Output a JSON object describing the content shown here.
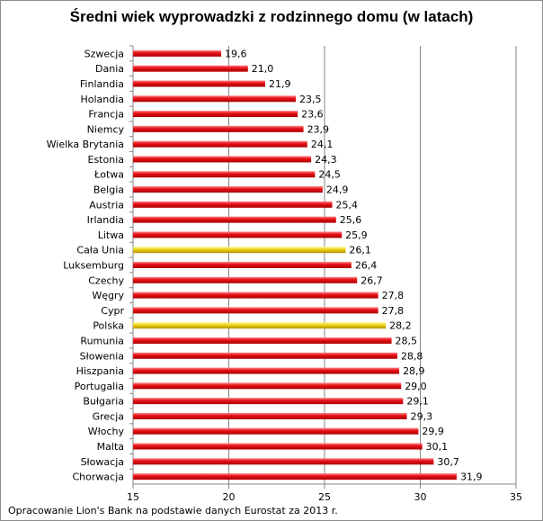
{
  "chart_data": {
    "type": "bar",
    "orientation": "horizontal",
    "title": "Średni wiek wyprowadzki z rodzinnego domu (w latach)",
    "categories": [
      "Szwecja",
      "Dania",
      "Finlandia",
      "Holandia",
      "Francja",
      "Niemcy",
      "Wielka Brytania",
      "Estonia",
      "Łotwa",
      "Belgia",
      "Austria",
      "Irlandia",
      "Litwa",
      "Cała Unia",
      "Luksemburg",
      "Czechy",
      "Węgry",
      "Cypr",
      "Polska",
      "Rumunia",
      "Słowenia",
      "Hiszpania",
      "Portugalia",
      "Bułgaria",
      "Grecja",
      "Włochy",
      "Malta",
      "Słowacja",
      "Chorwacja"
    ],
    "values": [
      19.6,
      21.0,
      21.9,
      23.5,
      23.6,
      23.9,
      24.1,
      24.3,
      24.5,
      24.9,
      25.4,
      25.6,
      25.9,
      26.1,
      26.4,
      26.7,
      27.8,
      27.8,
      28.2,
      28.5,
      28.8,
      28.9,
      29.0,
      29.1,
      29.3,
      29.9,
      30.1,
      30.7,
      31.9
    ],
    "data_labels": [
      "19,6",
      "21,0",
      "21,9",
      "23,5",
      "23,6",
      "23,9",
      "24,1",
      "24,3",
      "24,5",
      "24,9",
      "25,4",
      "25,6",
      "25,9",
      "26,1",
      "26,4",
      "26,7",
      "27,8",
      "27,8",
      "28,2",
      "28,5",
      "28,8",
      "28,9",
      "29,0",
      "29,1",
      "29,3",
      "29,9",
      "30,1",
      "30,7",
      "31,9"
    ],
    "highlighted": [
      "Cała Unia",
      "Polska"
    ],
    "xlim": [
      15,
      35
    ],
    "xticks": [
      "15",
      "20",
      "25",
      "30",
      "35"
    ],
    "xtick_values": [
      15,
      20,
      25,
      30,
      35
    ],
    "grid": "vertical",
    "colors": {
      "bar": "#e8121a",
      "highlight": "#f0d81a"
    }
  },
  "source": "Opracowanie Lion's Bank na podstawie danych Eurostat za 2013 r."
}
